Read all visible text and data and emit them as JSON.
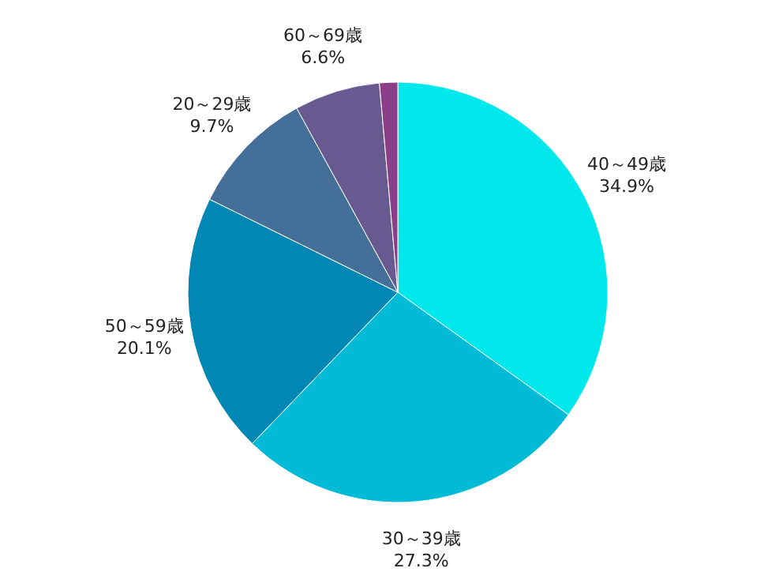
{
  "chart_data": {
    "type": "pie",
    "categories": [
      "40～49歳",
      "30～39歳",
      "50～59歳",
      "20～29歳",
      "60～69歳",
      null
    ],
    "values": [
      34.9,
      27.3,
      20.1,
      9.7,
      6.6,
      1.4
    ],
    "value_labels": [
      "34.9%",
      "27.3%",
      "20.1%",
      "9.7%",
      "6.6%",
      null
    ],
    "colors": [
      "#00e8ec",
      "#00bad6",
      "#0087b4",
      "#446f98",
      "#665a91",
      "#8b3f87"
    ],
    "legend": false
  }
}
